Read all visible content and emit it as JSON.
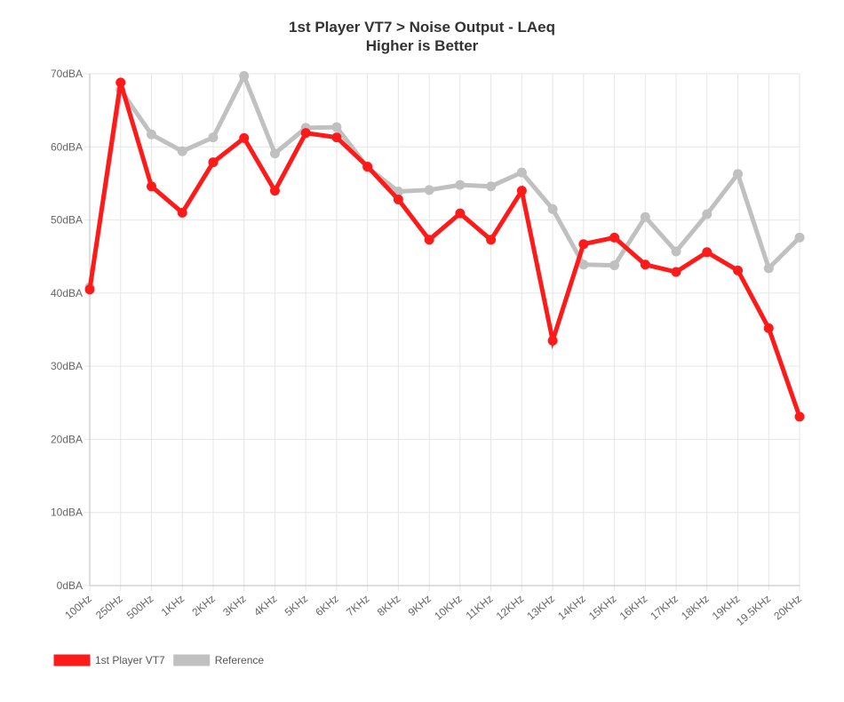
{
  "chart_data": {
    "type": "line",
    "title": "1st Player VT7 > Noise Output - LAeq",
    "subtitle": "Higher is Better",
    "xlabel": "",
    "ylabel": "",
    "categories": [
      "100Hz",
      "250Hz",
      "500Hz",
      "1KHz",
      "2KHz",
      "3KHz",
      "4KHz",
      "5KHz",
      "6KHz",
      "7KHz",
      "8KHz",
      "9KHz",
      "10KHz",
      "11KHz",
      "12KHz",
      "13KHz",
      "14KHz",
      "15KHz",
      "16KHz",
      "17KHz",
      "18KHz",
      "19KHz",
      "19.5KHz",
      "20KHz"
    ],
    "ylim": [
      0,
      70
    ],
    "yticks": [
      "0dBA",
      "10dBA",
      "20dBA",
      "30dBA",
      "40dBA",
      "50dBA",
      "60dBA",
      "70dBA"
    ],
    "grid": true,
    "legend_position": "bottom-left",
    "series": [
      {
        "name": "1st Player VT7",
        "color": "#ff1a1a",
        "values": [
          40.5,
          68.8,
          54.6,
          51.0,
          57.9,
          61.2,
          54.0,
          61.9,
          61.3,
          57.3,
          52.8,
          47.3,
          50.9,
          47.3,
          54.0,
          33.5,
          46.7,
          47.6,
          43.9,
          42.9,
          45.6,
          43.1,
          35.2,
          23.1
        ]
      },
      {
        "name": "Reference",
        "color": "#c0c0c0",
        "values": [
          40.8,
          67.8,
          61.7,
          59.4,
          61.3,
          69.7,
          59.1,
          62.6,
          62.7,
          57.2,
          53.9,
          54.1,
          54.8,
          54.6,
          56.5,
          51.5,
          43.9,
          43.8,
          50.4,
          45.7,
          50.8,
          56.3,
          43.4,
          47.6
        ]
      }
    ]
  }
}
